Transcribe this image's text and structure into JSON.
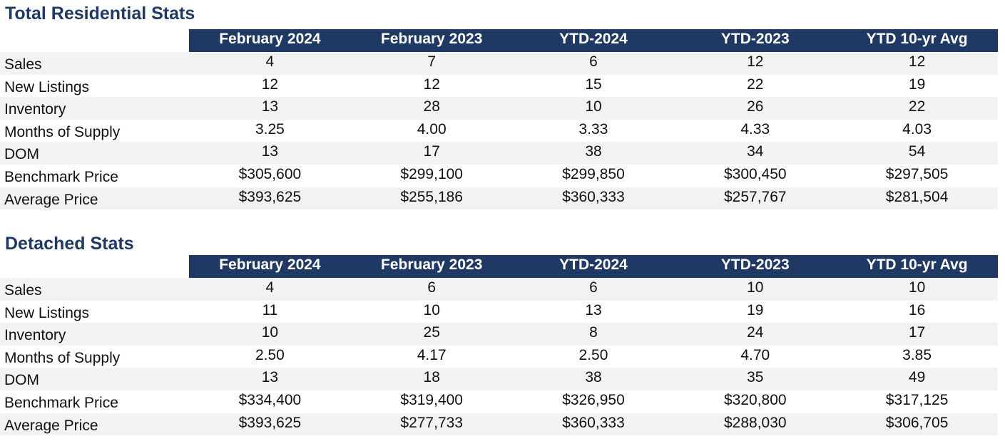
{
  "columns": [
    "February 2024",
    "February 2023",
    "YTD-2024",
    "YTD-2023",
    "YTD 10-yr Avg"
  ],
  "sections": [
    {
      "title": "Total Residential Stats",
      "rows": [
        {
          "label": "Sales",
          "values": [
            "4",
            "7",
            "6",
            "12",
            "12"
          ]
        },
        {
          "label": "New Listings",
          "values": [
            "12",
            "12",
            "15",
            "22",
            "19"
          ]
        },
        {
          "label": "Inventory",
          "values": [
            "13",
            "28",
            "10",
            "26",
            "22"
          ]
        },
        {
          "label": "Months of Supply",
          "values": [
            "3.25",
            "4.00",
            "3.33",
            "4.33",
            "4.03"
          ]
        },
        {
          "label": "DOM",
          "values": [
            "13",
            "17",
            "38",
            "34",
            "54"
          ]
        },
        {
          "label": "Benchmark Price",
          "values": [
            "$305,600",
            "$299,100",
            "$299,850",
            "$300,450",
            "$297,505"
          ]
        },
        {
          "label": "Average Price",
          "values": [
            "$393,625",
            "$255,186",
            "$360,333",
            "$257,767",
            "$281,504"
          ]
        }
      ]
    },
    {
      "title": "Detached Stats",
      "rows": [
        {
          "label": "Sales",
          "values": [
            "4",
            "6",
            "6",
            "10",
            "10"
          ]
        },
        {
          "label": "New Listings",
          "values": [
            "11",
            "10",
            "13",
            "19",
            "16"
          ]
        },
        {
          "label": "Inventory",
          "values": [
            "10",
            "25",
            "8",
            "24",
            "17"
          ]
        },
        {
          "label": "Months of Supply",
          "values": [
            "2.50",
            "4.17",
            "2.50",
            "4.70",
            "3.85"
          ]
        },
        {
          "label": "DOM",
          "values": [
            "13",
            "18",
            "38",
            "35",
            "49"
          ]
        },
        {
          "label": "Benchmark Price",
          "values": [
            "$334,400",
            "$319,400",
            "$326,950",
            "$320,800",
            "$317,125"
          ]
        },
        {
          "label": "Average Price",
          "values": [
            "$393,625",
            "$277,733",
            "$360,333",
            "$288,030",
            "$306,705"
          ]
        }
      ]
    }
  ],
  "colors": {
    "title": "#1f3864",
    "header_band": "#203864",
    "header_text": "#ffffff",
    "row_shade": "#f2f2f2"
  }
}
